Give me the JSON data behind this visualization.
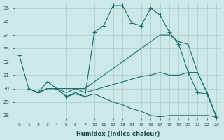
{
  "xlabel": "Humidex (Indice chaleur)",
  "background_color": "#cce8e8",
  "grid_color": "#aacccc",
  "line_color": "#1a6e6e",
  "xtick_labels": [
    "0",
    "1",
    "2",
    "3",
    "4",
    "5",
    "6",
    "7",
    "10",
    "11",
    "12",
    "13",
    "14",
    "15",
    "16",
    "17",
    "18",
    "19",
    "20",
    "21",
    "22",
    "23"
  ],
  "yticks": [
    28,
    29,
    30,
    31,
    32,
    33,
    34,
    35,
    36
  ],
  "ylim": [
    27.8,
    36.4
  ],
  "series": [
    {
      "xi": [
        0,
        1,
        2,
        3,
        4,
        5,
        6,
        7,
        8,
        9,
        10,
        11,
        12,
        13,
        14,
        15,
        16,
        17,
        18,
        19,
        20,
        21
      ],
      "y": [
        32.5,
        30.0,
        29.7,
        30.5,
        30.0,
        29.4,
        29.6,
        29.4,
        34.2,
        34.7,
        36.2,
        36.2,
        34.9,
        34.7,
        36.0,
        35.5,
        34.2,
        33.3,
        31.2,
        29.7,
        29.6,
        27.9
      ],
      "marker": "+"
    },
    {
      "xi": [
        1,
        2,
        3,
        4,
        5,
        6,
        7,
        8,
        9,
        10,
        11,
        12,
        13,
        14,
        15,
        16,
        17,
        18,
        19,
        20,
        21
      ],
      "y": [
        30.0,
        29.7,
        30.0,
        30.0,
        30.0,
        30.0,
        30.0,
        30.5,
        31.0,
        31.5,
        32.0,
        32.5,
        33.0,
        33.5,
        34.0,
        34.0,
        33.5,
        33.3,
        31.2,
        29.7,
        27.9
      ],
      "marker": null
    },
    {
      "xi": [
        1,
        2,
        3,
        4,
        5,
        6,
        7,
        8,
        9,
        10,
        11,
        12,
        13,
        14,
        15,
        16,
        17,
        18,
        19,
        20,
        21
      ],
      "y": [
        30.0,
        29.7,
        30.0,
        30.0,
        29.7,
        30.0,
        29.7,
        29.9,
        30.1,
        30.3,
        30.5,
        30.7,
        30.9,
        31.0,
        31.2,
        31.0,
        31.0,
        31.2,
        31.2,
        29.7,
        27.9
      ],
      "marker": null
    },
    {
      "xi": [
        1,
        2,
        3,
        4,
        5,
        6,
        7,
        8,
        9,
        10,
        11,
        12,
        13,
        14,
        15,
        16,
        17,
        18,
        19,
        20,
        21
      ],
      "y": [
        30.0,
        29.7,
        30.0,
        30.0,
        29.4,
        29.7,
        29.4,
        29.6,
        29.3,
        29.0,
        28.8,
        28.5,
        28.3,
        28.0,
        27.9,
        28.0,
        28.0,
        28.0,
        28.0,
        28.0,
        27.9
      ],
      "marker": null
    }
  ]
}
